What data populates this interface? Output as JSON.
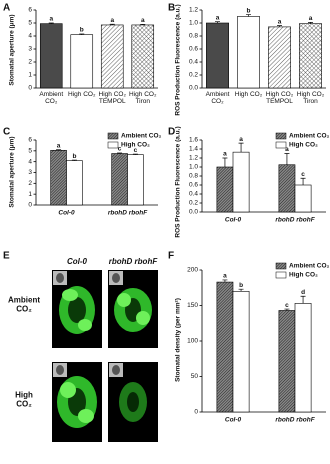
{
  "chart_data": [
    {
      "type": "bar",
      "panel": "A",
      "ylabel": "Stomatal aperture (μm)",
      "categories": [
        "Ambient CO₂",
        "High CO₂",
        "High CO₂ TEMPOL",
        "High CO₂ Tiron"
      ],
      "values": [
        4.95,
        4.1,
        4.85,
        4.85
      ],
      "errors": [
        0.05,
        0.06,
        0.06,
        0.05
      ],
      "letters": [
        "a",
        "b",
        "a",
        "a"
      ],
      "patterns": [
        "solid",
        "open",
        "hatch",
        "crosshatch"
      ],
      "ylim": [
        0,
        6
      ],
      "yticks": [
        0,
        1,
        2,
        3,
        4,
        5,
        6
      ]
    },
    {
      "type": "bar",
      "panel": "B",
      "ylabel": "ROS Production Fluorescence (a.u.)",
      "categories": [
        "Ambient CO₂",
        "High CO₂",
        "High CO₂ TEMPOL",
        "High CO₂ Tiron"
      ],
      "values": [
        1.0,
        1.1,
        0.94,
        0.99
      ],
      "errors": [
        0.02,
        0.03,
        0.02,
        0.02
      ],
      "letters": [
        "a",
        "b",
        "a",
        "a"
      ],
      "patterns": [
        "solid",
        "open",
        "hatch",
        "crosshatch"
      ],
      "ylim": [
        0,
        1.2
      ],
      "yticks": [
        {
          "value": 0,
          "label": "0.0"
        },
        0.2,
        0.4,
        0.6,
        0.8,
        {
          "value": 1,
          "label": "1.0"
        },
        1.2
      ]
    },
    {
      "type": "grouped_bar",
      "panel": "C",
      "ylabel": "Stomatal aperture (μm)",
      "legend": "upper right",
      "categories": [
        "Col-0",
        "rbohD rbohF"
      ],
      "series": [
        {
          "name": "Ambient CO₂",
          "pattern": "dense",
          "values": [
            5.05,
            4.75
          ],
          "errors": [
            0.05,
            0.05
          ],
          "letters": [
            "a",
            "c"
          ]
        },
        {
          "name": "High CO₂",
          "pattern": "open",
          "values": [
            4.1,
            4.65
          ],
          "errors": [
            0.05,
            0.05
          ],
          "letters": [
            "b",
            "c"
          ]
        }
      ],
      "ylim": [
        0,
        6
      ],
      "yticks": [
        0,
        1,
        2,
        3,
        4,
        5,
        6
      ]
    },
    {
      "type": "grouped_bar",
      "panel": "D",
      "ylabel": "ROS Production Fluorescence (a.u.)",
      "legend": "upper right",
      "categories": [
        "Col-0",
        "rbohD rbohF"
      ],
      "series": [
        {
          "name": "Ambient CO₂",
          "pattern": "dense",
          "values": [
            1.0,
            1.05
          ],
          "errors": [
            0.2,
            0.25
          ],
          "letters": [
            "a",
            "a"
          ]
        },
        {
          "name": "High CO₂",
          "pattern": "open",
          "values": [
            1.33,
            0.6
          ],
          "errors": [
            0.2,
            0.15
          ],
          "letters": [
            "a",
            "c"
          ]
        }
      ],
      "ylim": [
        0,
        1.6
      ],
      "yticks": [
        {
          "value": 0,
          "label": "0.0"
        },
        0.2,
        0.4,
        0.6,
        0.8,
        {
          "value": 1,
          "label": "1.0"
        },
        1.2,
        1.4,
        1.6
      ]
    },
    {
      "type": "grouped_bar",
      "panel": "F",
      "ylabel": "Stomatal density (per mm²)",
      "legend": "upper right",
      "categories": [
        "Col-0",
        "rbohD rbohF"
      ],
      "series": [
        {
          "name": "Ambient CO₂",
          "pattern": "dense",
          "values": [
            183,
            143
          ],
          "errors": [
            3,
            2
          ],
          "letters": [
            "a",
            "c"
          ]
        },
        {
          "name": "High CO₂",
          "pattern": "open",
          "values": [
            170,
            153
          ],
          "errors": [
            3,
            10
          ],
          "letters": [
            "b",
            "d"
          ]
        }
      ],
      "ylim": [
        0,
        200
      ],
      "yticks": [
        0,
        50,
        100,
        150,
        200
      ]
    }
  ],
  "image_panel": {
    "panel": "E",
    "columns": [
      "Col-0",
      "rbohD rbohF"
    ],
    "rows": [
      "Ambient CO₂",
      "High CO₂"
    ]
  }
}
